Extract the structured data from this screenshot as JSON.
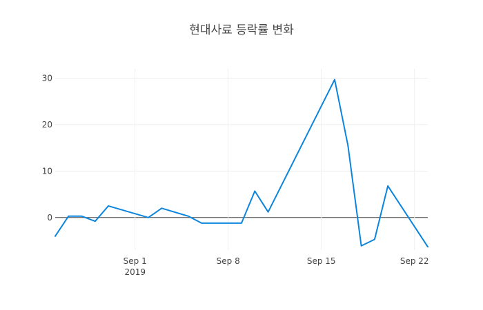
{
  "chart_data": {
    "type": "line",
    "title": "현대사료 등락률 변화",
    "xlabel": "",
    "ylabel": "",
    "x": [
      "2019-08-26",
      "2019-08-27",
      "2019-08-28",
      "2019-08-29",
      "2019-08-30",
      "2019-09-02",
      "2019-09-03",
      "2019-09-05",
      "2019-09-06",
      "2019-09-09",
      "2019-09-10",
      "2019-09-11",
      "2019-09-16",
      "2019-09-17",
      "2019-09-18",
      "2019-09-19",
      "2019-09-20",
      "2019-09-23"
    ],
    "series": [
      {
        "values": [
          -4,
          0.3,
          0.3,
          -0.8,
          2.5,
          0,
          2,
          0.3,
          -1.2,
          -1.2,
          5.7,
          1.2,
          29.7,
          15.5,
          -6.1,
          -4.7,
          6.8,
          -6.3
        ]
      }
    ],
    "x_range": [
      "2019-08-26",
      "2019-09-23"
    ],
    "ylim": [
      -7,
      32
    ],
    "y_ticks": [
      0,
      10,
      20,
      30
    ],
    "x_ticks": [
      {
        "date": "2019-09-01",
        "label": "Sep 1",
        "sublabel": "2019"
      },
      {
        "date": "2019-09-08",
        "label": "Sep 8",
        "sublabel": ""
      },
      {
        "date": "2019-09-15",
        "label": "Sep 15",
        "sublabel": ""
      },
      {
        "date": "2019-09-22",
        "label": "Sep 22",
        "sublabel": ""
      }
    ],
    "grid": true,
    "colors": {
      "line": "#0a84dd",
      "grid": "#eeeeee",
      "zero_line": "#444444",
      "text": "#444444"
    }
  }
}
